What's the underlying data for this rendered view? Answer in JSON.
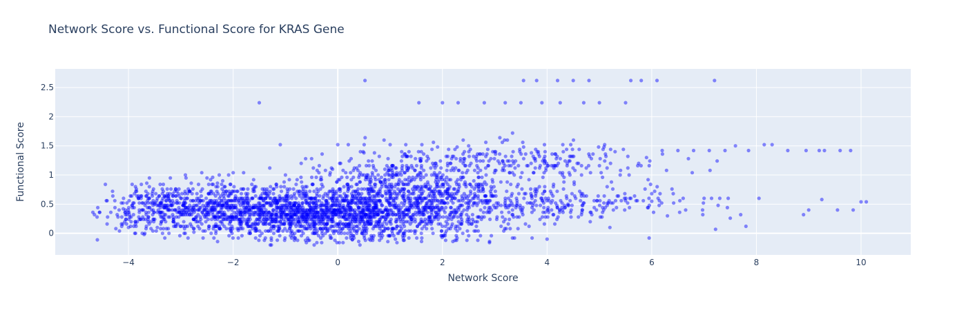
{
  "chart_data": {
    "type": "scatter",
    "title": "Network Score vs. Functional Score for KRAS Gene",
    "xlabel": "Network Score",
    "ylabel": "Functional Score",
    "xlim": [
      -5.4,
      10.95
    ],
    "ylim": [
      -0.37,
      2.82
    ],
    "x_ticks": [
      -4,
      -2,
      0,
      2,
      4,
      6,
      8,
      10
    ],
    "x_tick_labels": [
      "−4",
      "−2",
      "0",
      "2",
      "4",
      "6",
      "8",
      "10"
    ],
    "y_ticks": [
      0,
      0.5,
      1,
      1.5,
      2,
      2.5
    ],
    "y_tick_labels": [
      "0",
      "0.5",
      "1",
      "1.5",
      "2",
      "2.5"
    ],
    "grid": true,
    "legend": "none",
    "colors": {
      "marker": "#0000ff",
      "plot_bg": "#e5ecf6",
      "grid": "#ffffff",
      "text": "#2a3f5f"
    },
    "marker_opacity": 0.45,
    "series": [
      {
        "points": [
          [
            -4.6,
            0.28
          ],
          [
            -4.55,
            0.36
          ],
          [
            -4.4,
            0.28
          ],
          [
            -4.2,
            0.28
          ],
          [
            -4.1,
            0.42
          ],
          [
            -4.0,
            0.1
          ],
          [
            -3.95,
            0.2
          ],
          [
            -3.85,
            0.76
          ],
          [
            -3.8,
            0.6
          ],
          [
            -3.7,
            -0.02
          ],
          [
            -3.65,
            0.86
          ],
          [
            -3.6,
            0.95
          ],
          [
            -3.5,
            0.5
          ],
          [
            -3.45,
            0.1
          ],
          [
            -3.3,
            0.62
          ],
          [
            -3.2,
            0.95
          ],
          [
            -3.1,
            0.76
          ],
          [
            -3.0,
            0.12
          ],
          [
            -2.9,
            0.95
          ],
          [
            -2.8,
            0.86
          ],
          [
            -2.75,
            0.02
          ],
          [
            -2.6,
            1.04
          ],
          [
            -2.5,
            0.95
          ],
          [
            -2.3,
            0.86
          ],
          [
            -2.2,
            0.9
          ],
          [
            -2.0,
            1.04
          ],
          [
            -1.9,
            0.05
          ],
          [
            -1.8,
            1.04
          ],
          [
            -1.5,
            2.24
          ],
          [
            -1.55,
            0.05
          ],
          [
            -1.3,
            1.12
          ],
          [
            -1.1,
            1.52
          ],
          [
            -1.0,
            1.0
          ],
          [
            -0.9,
            0.02
          ],
          [
            -0.7,
            1.2
          ],
          [
            -0.6,
            -0.16
          ],
          [
            -0.5,
            1.28
          ],
          [
            -0.4,
            -0.16
          ],
          [
            -0.3,
            1.36
          ],
          [
            -0.1,
            1.1
          ],
          [
            0.0,
            1.52
          ],
          [
            0.1,
            -0.16
          ],
          [
            0.2,
            1.52
          ],
          [
            0.3,
            1.08
          ],
          [
            0.4,
            -0.14
          ],
          [
            0.5,
            1.38
          ],
          [
            0.52,
            2.62
          ],
          [
            0.6,
            -0.1
          ],
          [
            0.7,
            1.38
          ],
          [
            0.9,
            1.1
          ],
          [
            1.0,
            1.52
          ],
          [
            1.1,
            -0.1
          ],
          [
            1.3,
            1.52
          ],
          [
            1.4,
            0.9
          ],
          [
            1.55,
            2.24
          ],
          [
            1.6,
            -0.14
          ],
          [
            1.8,
            1.44
          ],
          [
            2.0,
            2.24
          ],
          [
            2.1,
            1.2
          ],
          [
            2.2,
            -0.14
          ],
          [
            2.3,
            2.24
          ],
          [
            2.5,
            1.5
          ],
          [
            2.6,
            0.9
          ],
          [
            2.8,
            2.24
          ],
          [
            2.9,
            -0.14
          ],
          [
            3.0,
            1.4
          ],
          [
            3.2,
            2.24
          ],
          [
            3.3,
            0.56
          ],
          [
            3.5,
            2.24
          ],
          [
            3.55,
            2.62
          ],
          [
            3.7,
            1.38
          ],
          [
            3.8,
            2.62
          ],
          [
            3.9,
            2.24
          ],
          [
            4.0,
            -0.1
          ],
          [
            4.1,
            0.56
          ],
          [
            4.2,
            2.62
          ],
          [
            4.25,
            2.24
          ],
          [
            4.3,
            1.52
          ],
          [
            4.4,
            0.5
          ],
          [
            4.5,
            2.62
          ],
          [
            4.6,
            1.2
          ],
          [
            4.7,
            2.24
          ],
          [
            4.8,
            2.62
          ],
          [
            4.9,
            0.56
          ],
          [
            5.0,
            2.24
          ],
          [
            5.1,
            1.52
          ],
          [
            5.2,
            0.1
          ],
          [
            5.3,
            1.4
          ],
          [
            5.5,
            2.24
          ],
          [
            5.6,
            2.62
          ],
          [
            5.7,
            0.56
          ],
          [
            5.8,
            2.62
          ],
          [
            5.9,
            1.3
          ],
          [
            5.95,
            -0.08
          ],
          [
            6.0,
            0.55
          ],
          [
            6.1,
            2.62
          ],
          [
            6.2,
            1.42
          ],
          [
            6.3,
            0.3
          ],
          [
            6.5,
            1.42
          ],
          [
            6.6,
            0.6
          ],
          [
            6.8,
            1.42
          ],
          [
            7.0,
            0.6
          ],
          [
            7.1,
            1.42
          ],
          [
            7.2,
            2.62
          ],
          [
            7.22,
            0.07
          ],
          [
            7.25,
            1.24
          ],
          [
            7.3,
            0.6
          ],
          [
            7.4,
            1.42
          ],
          [
            7.5,
            0.26
          ],
          [
            7.6,
            1.5
          ],
          [
            7.7,
            0.32
          ],
          [
            7.8,
            0.12
          ],
          [
            7.85,
            1.42
          ],
          [
            8.05,
            0.6
          ],
          [
            8.15,
            1.52
          ],
          [
            8.3,
            1.52
          ],
          [
            8.6,
            1.42
          ],
          [
            8.9,
            0.32
          ],
          [
            8.95,
            1.42
          ],
          [
            9.0,
            0.4
          ],
          [
            9.2,
            1.42
          ],
          [
            9.25,
            0.58
          ],
          [
            9.3,
            1.42
          ],
          [
            9.55,
            0.4
          ],
          [
            9.6,
            1.42
          ],
          [
            9.8,
            1.42
          ],
          [
            9.85,
            0.4
          ],
          [
            10.0,
            0.54
          ],
          [
            10.1,
            0.54
          ]
        ],
        "clusters": [
          {
            "cx": -3.5,
            "cy": 0.42,
            "sx": 0.45,
            "sy": 0.2,
            "n": 260
          },
          {
            "cx": -2.3,
            "cy": 0.4,
            "sx": 0.55,
            "sy": 0.22,
            "n": 420
          },
          {
            "cx": -1.1,
            "cy": 0.36,
            "sx": 0.6,
            "sy": 0.23,
            "n": 620
          },
          {
            "cx": 0.1,
            "cy": 0.34,
            "sx": 0.6,
            "sy": 0.23,
            "n": 620
          },
          {
            "cx": 1.2,
            "cy": 0.38,
            "sx": 0.6,
            "sy": 0.24,
            "n": 420
          },
          {
            "cx": 2.4,
            "cy": 0.42,
            "sx": 0.7,
            "sy": 0.25,
            "n": 260
          },
          {
            "cx": 3.9,
            "cy": 0.5,
            "sx": 0.9,
            "sy": 0.15,
            "n": 150
          },
          {
            "cx": 5.6,
            "cy": 0.52,
            "sx": 0.8,
            "sy": 0.12,
            "n": 70
          },
          {
            "cx": 1.2,
            "cy": 1.05,
            "sx": 0.8,
            "sy": 0.14,
            "n": 140
          },
          {
            "cx": 2.6,
            "cy": 1.25,
            "sx": 1.0,
            "sy": 0.15,
            "n": 170
          },
          {
            "cx": 4.6,
            "cy": 1.2,
            "sx": 0.9,
            "sy": 0.15,
            "n": 90
          },
          {
            "cx": 1.6,
            "cy": 0.75,
            "sx": 1.1,
            "sy": 0.12,
            "n": 150
          }
        ]
      }
    ]
  }
}
